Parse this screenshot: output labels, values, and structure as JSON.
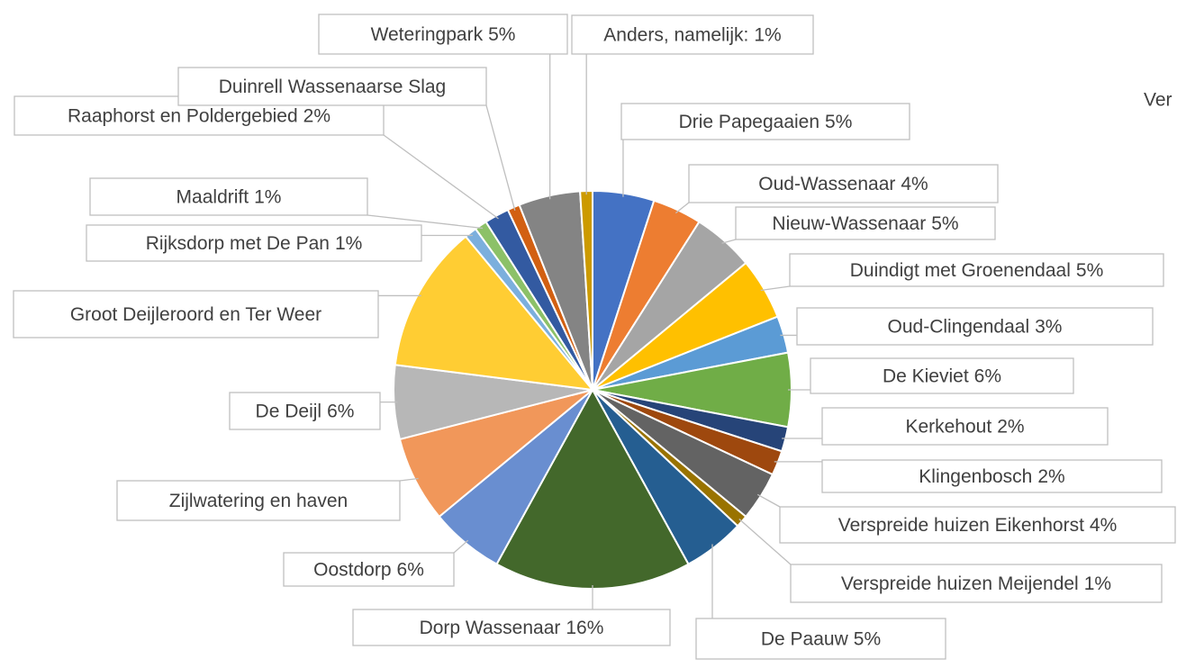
{
  "chart_data": {
    "type": "pie",
    "annotation": "Ver",
    "categories": [
      "Drie Papegaaien",
      "Oud-Wassenaar",
      "Nieuw-Wassenaar",
      "Duindigt met Groenendaal",
      "Oud-Clingendaal",
      "De Kieviet",
      "Kerkehout",
      "Klingenbosch",
      "Verspreide huizen Eikenhorst",
      "Verspreide huizen Meijendel",
      "De Paauw",
      "Dorp Wassenaar",
      "Oostdorp",
      "Zijlwatering en haven",
      "De Deijl",
      "Groot Deijleroord en Ter Weer",
      "Rijksdorp met De Pan",
      "Maaldrift",
      "Raaphorst en Poldergebied",
      "Duinrell Wassenaarse Slag",
      "Weteringpark",
      "Anders, namelijk:"
    ],
    "values": [
      5,
      4,
      5,
      5,
      3,
      6,
      2,
      2,
      4,
      1,
      5,
      16,
      6,
      7,
      6,
      12,
      1,
      1,
      2,
      1,
      5,
      1
    ],
    "value_labels": [
      "5%",
      "4%",
      "5%",
      "5%",
      "3%",
      "6%",
      "2%",
      "2%",
      "4%",
      "1%",
      "5%",
      "16%",
      "6%",
      null,
      "6%",
      null,
      "1%",
      "1%",
      "2%",
      null,
      "5%",
      "1%"
    ],
    "colors": [
      "#4472c4",
      "#ed7d31",
      "#a5a5a5",
      "#ffc000",
      "#5b9bd5",
      "#70ad47",
      "#264478",
      "#9e480e",
      "#636363",
      "#997300",
      "#255e91",
      "#43682b",
      "#698ed0",
      "#f1975a",
      "#b7b7b7",
      "#ffcd33",
      "#7cafdd",
      "#8cc168",
      "#335aa1",
      "#d26012",
      "#848484",
      "#cc9a00"
    ]
  }
}
